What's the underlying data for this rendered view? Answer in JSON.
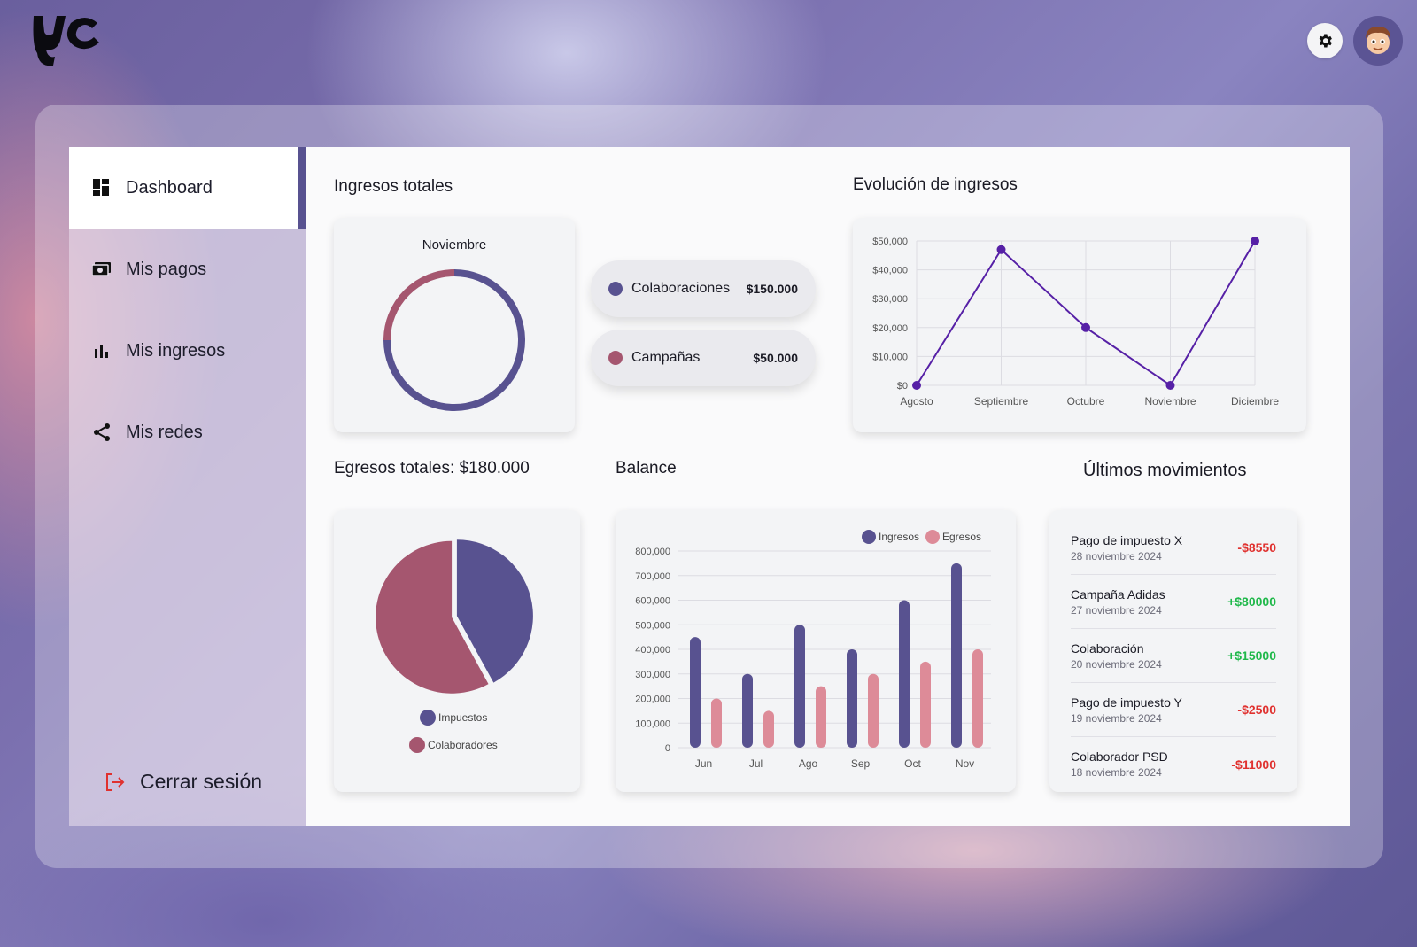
{
  "colors": {
    "primary": "#585290",
    "secondary": "#a5566f",
    "egresos": "#dd8b98",
    "line": "#5620a6",
    "negative": "#e0312f",
    "positive": "#1fb84a"
  },
  "sidebar": {
    "items": [
      {
        "label": "Dashboard",
        "icon": "dashboard-icon",
        "active": true
      },
      {
        "label": "Mis pagos",
        "icon": "payments-icon"
      },
      {
        "label": "Mis ingresos",
        "icon": "bar-chart-icon"
      },
      {
        "label": "Mis redes",
        "icon": "share-icon"
      }
    ],
    "logout_label": "Cerrar sesión"
  },
  "ingresos": {
    "title": "Ingresos totales",
    "month": "Noviembre",
    "donut": [
      {
        "name": "Colaboraciones",
        "value": 150000,
        "amount": "$150.000"
      },
      {
        "name": "Campañas",
        "value": 50000,
        "amount": "$50.000"
      }
    ]
  },
  "evolucion": {
    "title": "Evolución de ingresos"
  },
  "egresos": {
    "title": "Egresos totales: $180.000",
    "legend": [
      "Impuestos",
      "Colaboradores"
    ]
  },
  "balance": {
    "title": "Balance",
    "legend": [
      "Ingresos",
      "Egresos"
    ]
  },
  "movimientos": {
    "title": "Últimos movimientos",
    "items": [
      {
        "title": "Pago de impuesto X",
        "date": "28 noviembre 2024",
        "amount": "-$8550",
        "sign": "neg"
      },
      {
        "title": "Campaña Adidas",
        "date": "27 noviembre 2024",
        "amount": "+$80000",
        "sign": "pos"
      },
      {
        "title": "Colaboración",
        "date": "20 noviembre 2024",
        "amount": "+$15000",
        "sign": "pos"
      },
      {
        "title": "Pago de impuesto Y",
        "date": "19 noviembre 2024",
        "amount": "-$2500",
        "sign": "neg"
      },
      {
        "title": "Colaborador PSD",
        "date": "18 noviembre 2024",
        "amount": "-$11000",
        "sign": "neg"
      }
    ]
  },
  "chart_data": [
    {
      "type": "pie",
      "title": "",
      "categories": [
        "Colaboraciones",
        "Campañas"
      ],
      "values": [
        150000,
        50000
      ]
    },
    {
      "type": "line",
      "title": "",
      "x": [
        "Agosto",
        "Septiembre",
        "Octubre",
        "Noviembre",
        "Diciembre"
      ],
      "series": [
        {
          "values": [
            0,
            47000,
            20000,
            0,
            50000
          ]
        }
      ],
      "ylim": [
        0,
        50000
      ],
      "yticks": [
        "$0",
        "$10,000",
        "$20,000",
        "$30,000",
        "$40,000",
        "$50,000"
      ],
      "grid": true
    },
    {
      "type": "pie",
      "title": "",
      "categories": [
        "Impuestos",
        "Colaboradores"
      ],
      "values": [
        42,
        58
      ]
    },
    {
      "type": "bar",
      "title": "",
      "categories": [
        "Jun",
        "Jul",
        "Ago",
        "Sep",
        "Oct",
        "Nov"
      ],
      "series": [
        {
          "name": "Ingresos",
          "values": [
            450000,
            300000,
            500000,
            400000,
            600000,
            750000
          ]
        },
        {
          "name": "Egresos",
          "values": [
            200000,
            150000,
            250000,
            300000,
            350000,
            400000
          ]
        }
      ],
      "ylim": [
        0,
        800000
      ],
      "yticks": [
        "0",
        "100,000",
        "200,000",
        "300,000",
        "400,000",
        "500,000",
        "600,000",
        "700,000",
        "800,000"
      ],
      "legend": "top-right",
      "grid": true
    }
  ]
}
